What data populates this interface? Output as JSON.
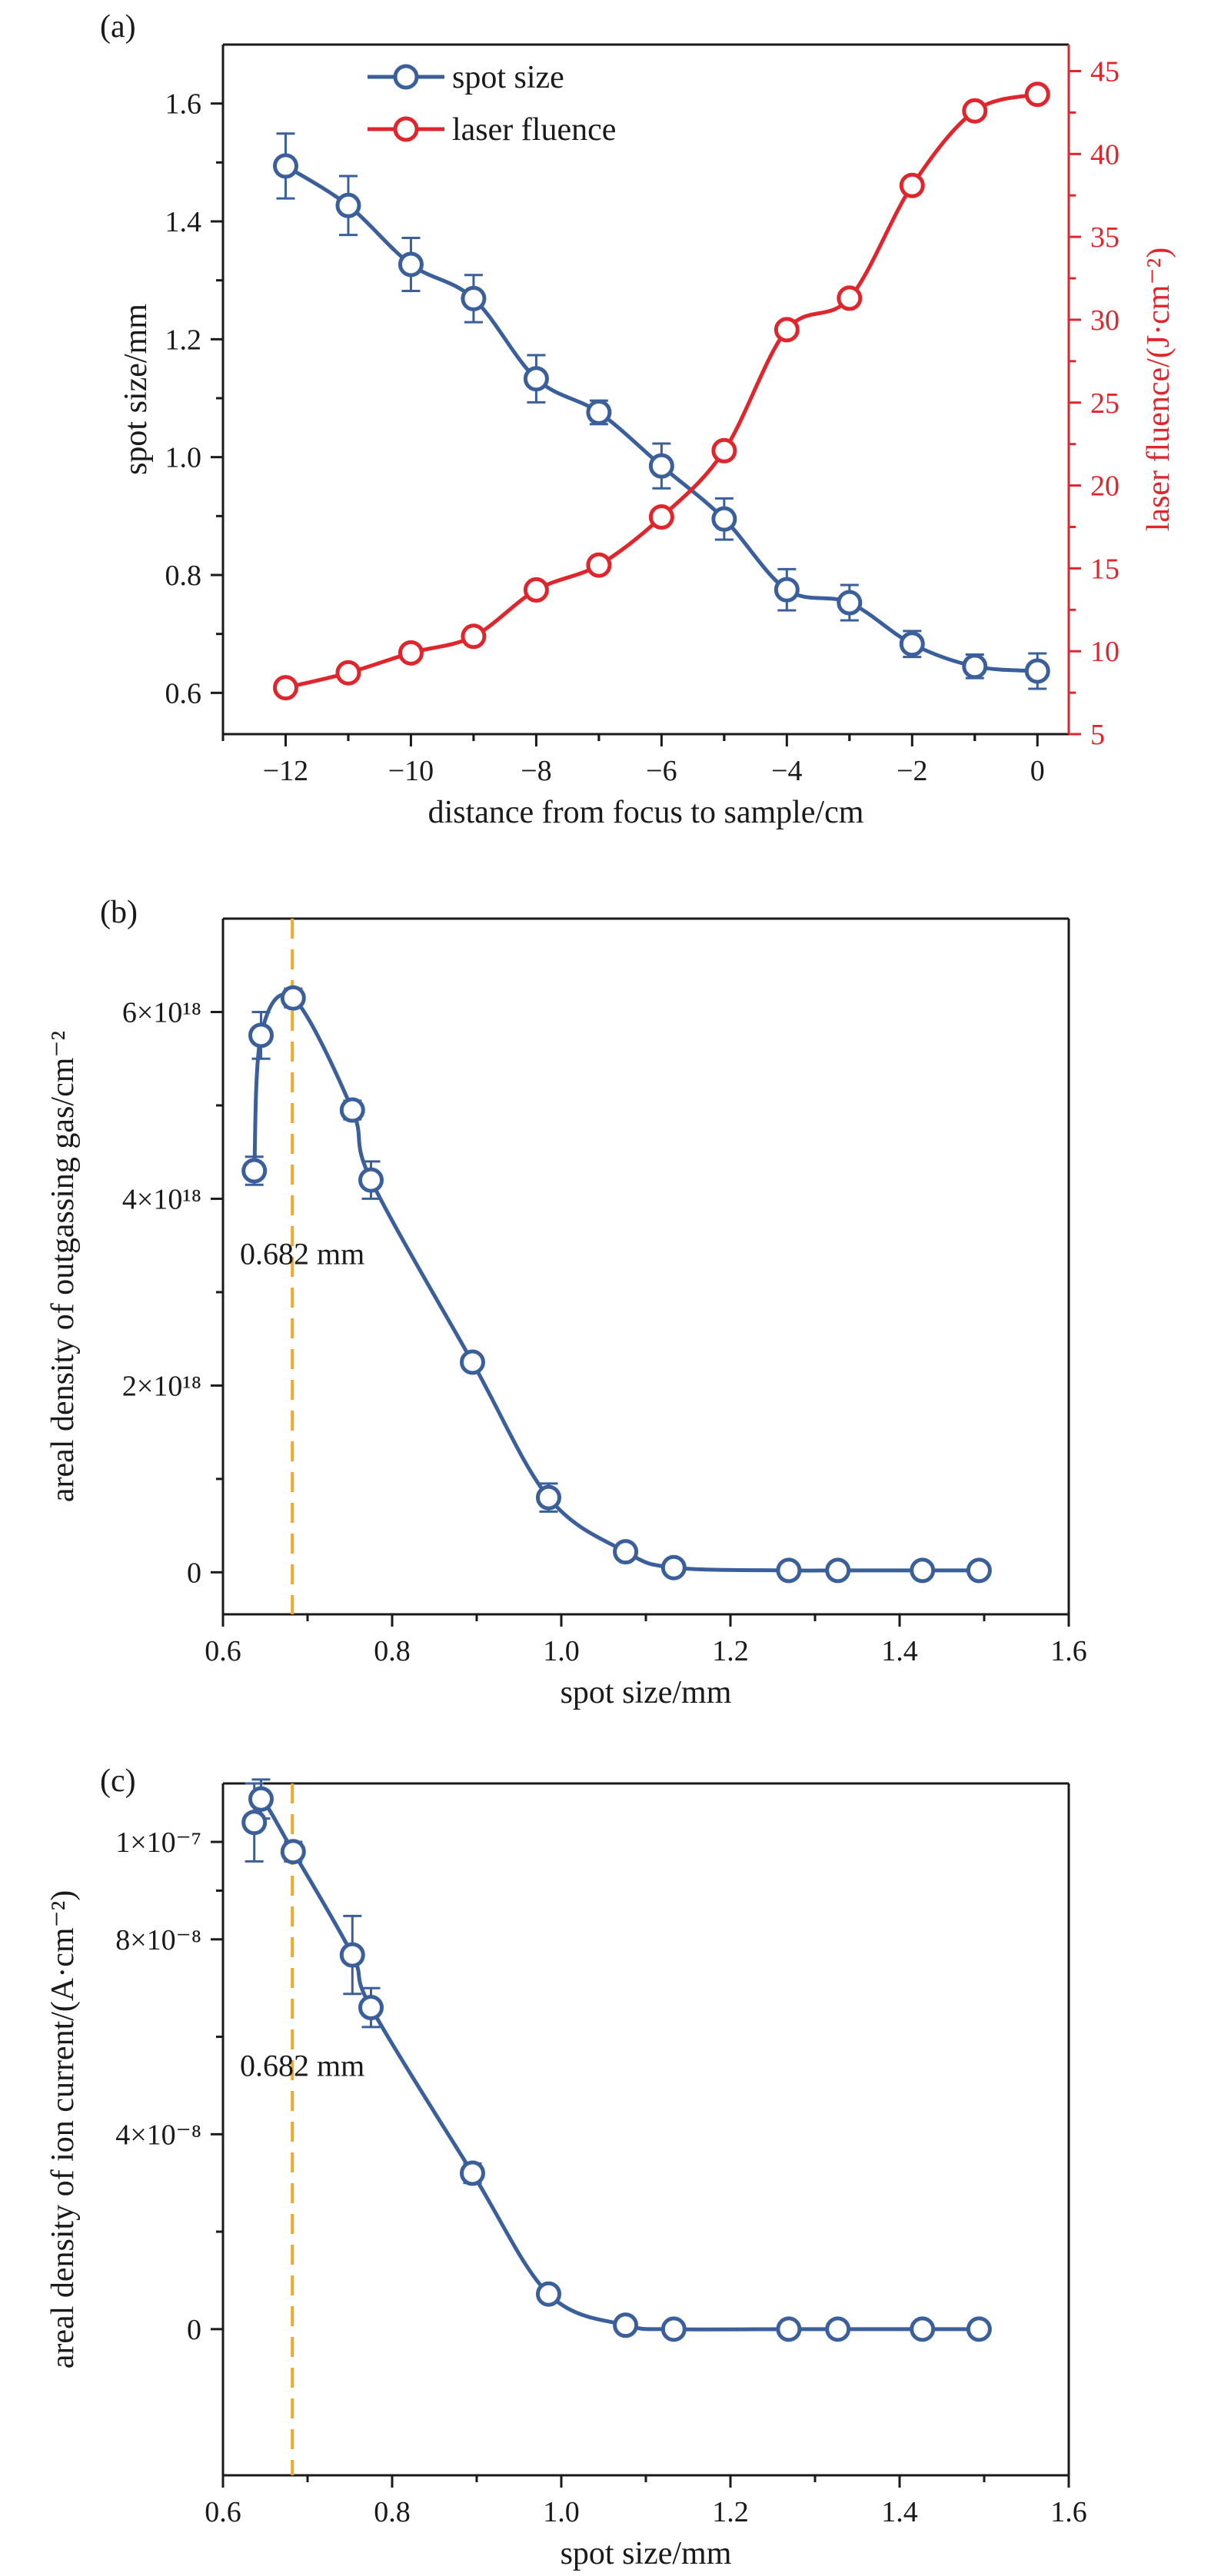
{
  "colors": {
    "blue": "#3a5f9b",
    "red": "#e0262c",
    "orange": "#f0a830",
    "axis": "#1a1a1a"
  },
  "chart_data": [
    {
      "panel_label": "(a)",
      "type": "line",
      "xlabel": "distance from focus to sample/cm",
      "ylabel": "spot size/mm",
      "y2label": "laser fluence/(J·cm⁻²)",
      "xlim": [
        -13.0,
        0.5
      ],
      "ylim": [
        0.53,
        1.7
      ],
      "y2lim": [
        5,
        46.6
      ],
      "xticks": [
        -12,
        -10,
        -8,
        -6,
        -4,
        -2,
        0
      ],
      "xtick_labels": [
        "−12",
        "−10",
        "−8",
        "−6",
        "−4",
        "−2",
        "0"
      ],
      "yticks": [
        0.6,
        0.8,
        1.0,
        1.2,
        1.4,
        1.6
      ],
      "ytick_labels": [
        "0.6",
        "0.8",
        "1.0",
        "1.2",
        "1.4",
        "1.6"
      ],
      "y2ticks": [
        5,
        10,
        15,
        20,
        25,
        30,
        35,
        40,
        45
      ],
      "y2tick_labels": [
        "5",
        "10",
        "15",
        "20",
        "25",
        "30",
        "35",
        "40",
        "45"
      ],
      "legend_position": "top-center",
      "x": [
        -12,
        -11,
        -10,
        -9,
        -8,
        -7,
        -6,
        -5,
        -4,
        -3,
        -2,
        -1,
        0
      ],
      "series": [
        {
          "name": "spot size",
          "axis": "left",
          "color": "#3a5f9b",
          "values": [
            1.494,
            1.427,
            1.327,
            1.269,
            1.133,
            1.076,
            0.985,
            0.895,
            0.775,
            0.753,
            0.683,
            0.645,
            0.637
          ],
          "errors": [
            0.055,
            0.05,
            0.045,
            0.04,
            0.04,
            0.02,
            0.038,
            0.035,
            0.035,
            0.03,
            0.022,
            0.02,
            0.03
          ]
        },
        {
          "name": "laser fluence",
          "axis": "right",
          "color": "#e0262c",
          "values": [
            7.8,
            8.7,
            9.9,
            10.9,
            13.7,
            15.2,
            18.1,
            22.1,
            29.4,
            31.3,
            38.1,
            42.6,
            43.6
          ],
          "errors": []
        }
      ]
    },
    {
      "panel_label": "(b)",
      "type": "line",
      "xlabel": "spot size/mm",
      "ylabel": "areal density of outgassing gas/cm⁻²",
      "xlim": [
        0.6,
        1.6
      ],
      "ylim": [
        -0.45,
        7.0
      ],
      "y_unit_note": "values in units of 10^18",
      "xticks": [
        0.6,
        0.8,
        1.0,
        1.2,
        1.4,
        1.6
      ],
      "xtick_labels": [
        "0.6",
        "0.8",
        "1.0",
        "1.2",
        "1.4",
        "1.6"
      ],
      "yticks": [
        0,
        2,
        4,
        6
      ],
      "ytick_labels": [
        "0",
        "2×10¹⁸",
        "4×10¹⁸",
        "6×10¹⁸"
      ],
      "vline_x": 0.682,
      "annotation": "0.682 mm",
      "x": [
        0.637,
        0.645,
        0.683,
        0.753,
        0.775,
        0.895,
        0.985,
        1.076,
        1.133,
        1.269,
        1.327,
        1.427,
        1.494
      ],
      "series": [
        {
          "name": "",
          "color": "#3a5f9b",
          "values": [
            4.3,
            5.75,
            6.15,
            4.95,
            4.2,
            2.25,
            0.8,
            0.22,
            0.05,
            0.02,
            0.02,
            0.02,
            0.02
          ],
          "errors": [
            0.15,
            0.25,
            0.1,
            0.1,
            0.2,
            0.05,
            0.15,
            0.05,
            0.02,
            0.02,
            0.02,
            0.02,
            0.02
          ]
        }
      ]
    },
    {
      "panel_label": "(c)",
      "type": "line",
      "xlabel": "spot size/mm",
      "ylabel": "areal density of ion current/(A·cm⁻²)",
      "xlim": [
        0.6,
        1.6
      ],
      "ylim": [
        -0.75,
        2.8
      ],
      "y_unit_note": "tick spacing as printed on the original axis",
      "xticks": [
        0.6,
        0.8,
        1.0,
        1.2,
        1.4,
        1.6
      ],
      "xtick_labels": [
        "0.6",
        "0.8",
        "1.0",
        "1.2",
        "1.4",
        "1.6"
      ],
      "yticks": [
        0,
        1,
        2,
        2.5
      ],
      "ytick_labels": [
        "0",
        "4×10⁻⁸",
        "8×10⁻⁸",
        "1×10⁻⁷"
      ],
      "vline_x": 0.682,
      "annotation": "0.682 mm",
      "x": [
        0.637,
        0.645,
        0.683,
        0.753,
        0.775,
        0.895,
        0.985,
        1.076,
        1.133,
        1.269,
        1.327,
        1.427,
        1.494
      ],
      "series": [
        {
          "name": "",
          "color": "#3a5f9b",
          "values": [
            2.6,
            2.72,
            2.45,
            1.92,
            1.65,
            0.8,
            0.18,
            0.02,
            0.0,
            0.0,
            0.0,
            0.0,
            0.0
          ],
          "errors": [
            0.2,
            0.1,
            0.05,
            0.2,
            0.1,
            0.05,
            0.03,
            0.02,
            0.01,
            0.01,
            0.01,
            0.01,
            0.01
          ]
        }
      ]
    }
  ]
}
